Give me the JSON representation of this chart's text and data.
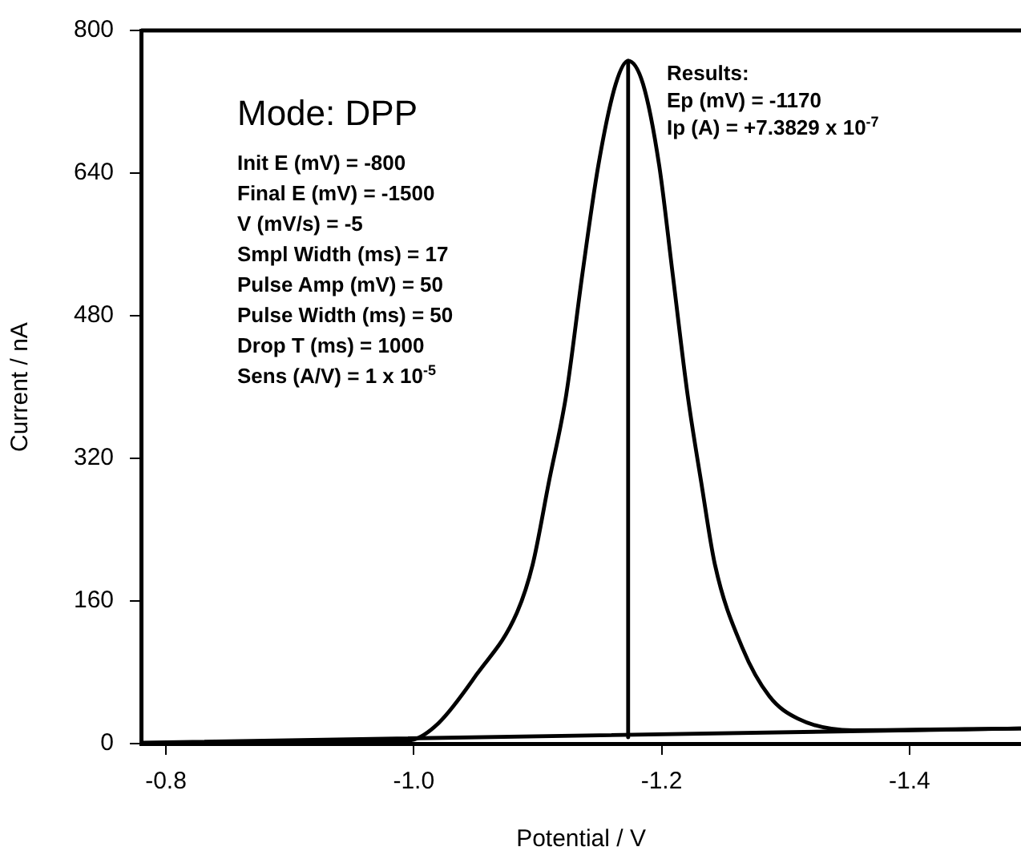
{
  "chart_data": {
    "type": "line",
    "xlabel": "Potential / V",
    "ylabel": "Current / nA",
    "xlim": [
      -0.78,
      -1.49
    ],
    "xticks": [
      -0.8,
      {
        "value": -1,
        "label": "-1.0"
      },
      -1.2,
      -1.4
    ],
    "ylim": [
      0,
      800
    ],
    "yticks": [
      0,
      160,
      320,
      480,
      640,
      800
    ],
    "grid": false,
    "legend": false,
    "marker": "none",
    "line_style": "solid",
    "series": [
      {
        "color": "#000000",
        "x": [
          -0.78,
          -0.9,
          -0.97,
          -0.998,
          -1.02,
          -1.051,
          -1.083,
          -1.096,
          -1.109,
          -1.123,
          -1.136,
          -1.149,
          -1.163,
          -1.173,
          -1.185,
          -1.198,
          -1.209,
          -1.221,
          -1.232,
          -1.243,
          -1.265,
          -1.287,
          -1.31,
          -1.354,
          -1.49
        ],
        "values": [
          0,
          1,
          2,
          4,
          23,
          78,
          146,
          201,
          293,
          391,
          526,
          649,
          740,
          766,
          740,
          649,
          526,
          391,
          293,
          201,
          108,
          53,
          28,
          15,
          17
        ]
      },
      {
        "color": "#000000",
        "x": [
          -1.173,
          -1.173
        ],
        "values": [
          7,
          766
        ]
      },
      {
        "color": "#000000",
        "x": [
          -0.78,
          -1.49
        ],
        "values": [
          1,
          17
        ]
      }
    ],
    "annotations": [
      "Mode: DPP",
      "Init E (mV) = -800\nFinal E (mV) = -1500\nV (mV/s) = -5\nSmpl Width (ms) = 17\nPulse Amp (mV) = 50\nPulse Width (ms) = 50\nDrop T (ms) = 1000\nSens (A/V) = 1 x 10$^{-5}$",
      "Results:\nEp (mV) = -1170\nIp (A) = +7.3829 x 10$^{-7}$"
    ]
  }
}
